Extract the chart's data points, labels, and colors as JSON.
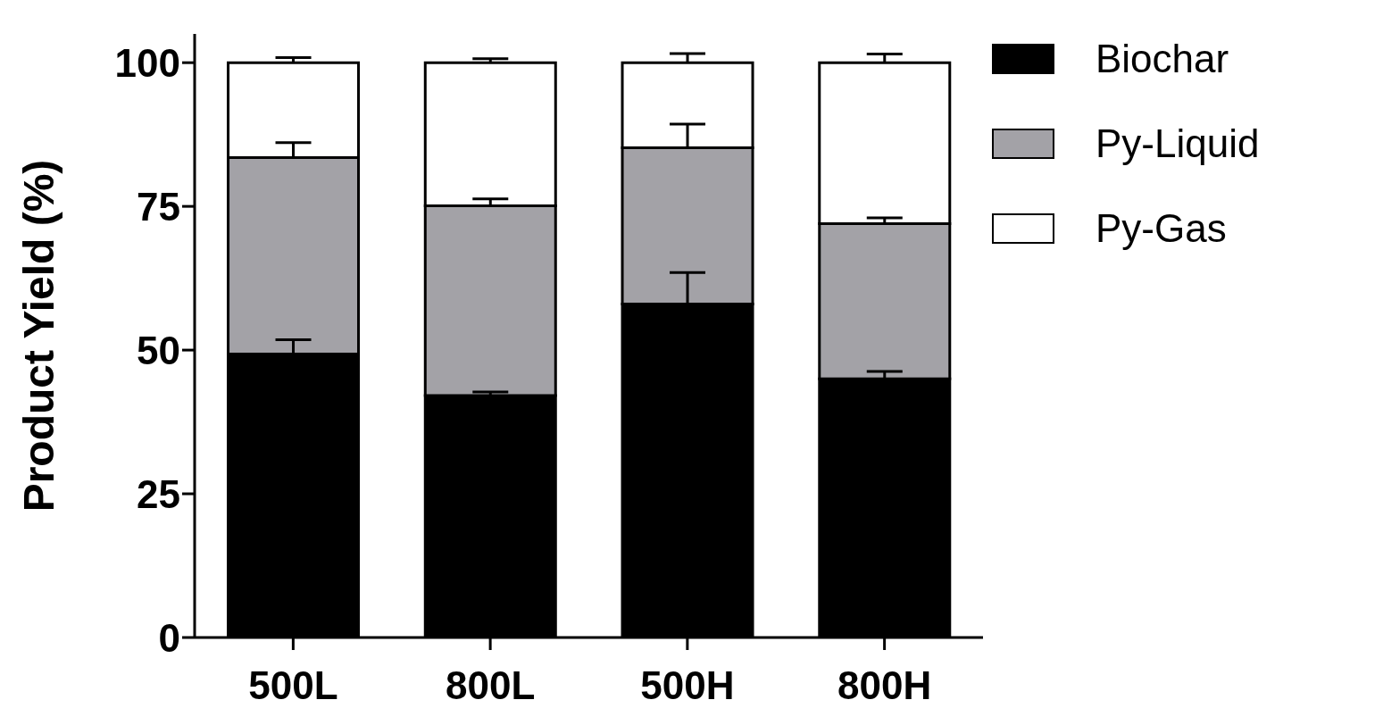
{
  "chart_data": {
    "type": "bar",
    "stacked": true,
    "ylabel": "Product Yield (%)",
    "categories": [
      "500L",
      "800L",
      "500H",
      "800H"
    ],
    "series": [
      {
        "name": "Biochar",
        "color": "#000000",
        "values": [
          49.3,
          42.1,
          58.0,
          45.0
        ],
        "errors": [
          [
            49.3,
            51.8
          ],
          [
            42.1,
            42.7
          ],
          [
            58.0,
            63.5
          ],
          [
            45.0,
            46.3
          ]
        ]
      },
      {
        "name": "Py-Liquid",
        "color": "#a3a2a7",
        "values": [
          34.2,
          33.0,
          27.2,
          27.0
        ],
        "errors": [
          [
            83.5,
            86.1
          ],
          [
            75.1,
            76.3
          ],
          [
            85.2,
            89.3
          ],
          [
            72.0,
            73.0
          ]
        ]
      },
      {
        "name": "Py-Gas",
        "color": "#ffffff",
        "values": [
          16.5,
          24.9,
          14.8,
          28.0
        ],
        "errors": [
          [
            100,
            100.9
          ],
          [
            100,
            100.7
          ],
          [
            100,
            101.6
          ],
          [
            100,
            101.5
          ]
        ]
      }
    ],
    "ylim": [
      0,
      105
    ],
    "yticks": [
      0,
      25,
      50,
      75,
      100
    ],
    "grid": false,
    "legend": "top right"
  }
}
